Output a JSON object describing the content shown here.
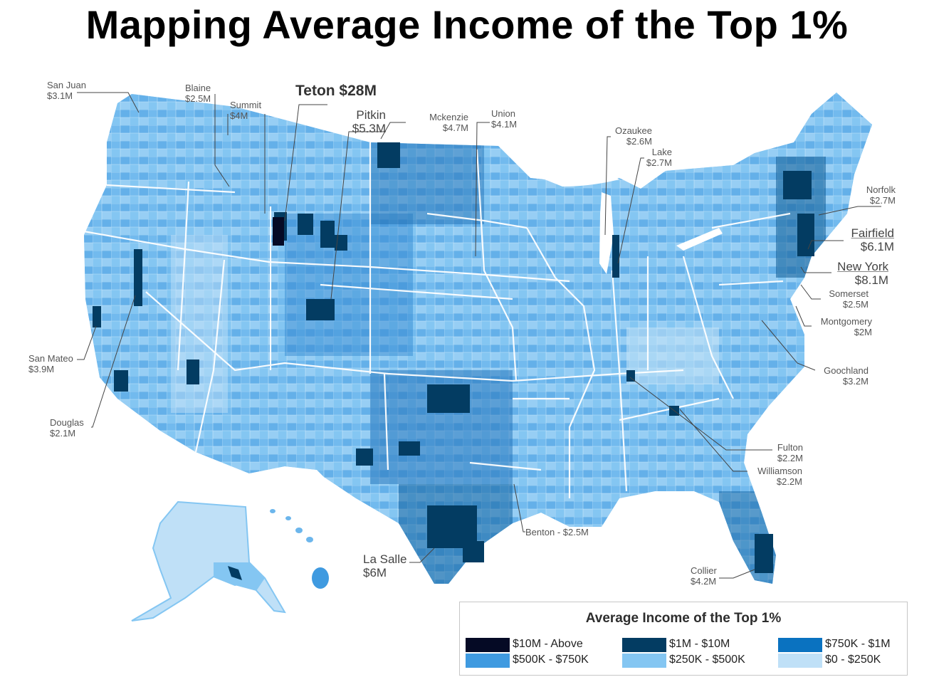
{
  "title": "Mapping Average Income of the Top 1%",
  "colors": {
    "bin_10m_above": "#050a25",
    "bin_1m_10m": "#033c62",
    "bin_750k_1m": "#0a72c0",
    "bin_500k_750k": "#3f9ae0",
    "bin_250k_500k": "#84c6f2",
    "bin_0_250k": "#bfe0f7"
  },
  "callouts": {
    "san_juan": {
      "name": "San Juan",
      "value": "$3.1M"
    },
    "blaine": {
      "name": "Blaine",
      "value": "$2.5M"
    },
    "summit": {
      "name": "Summit",
      "value": "$4M"
    },
    "teton": {
      "text": "Teton $28M"
    },
    "pitkin": {
      "name": "Pitkin",
      "value": "$5.3M"
    },
    "mckenzie": {
      "name": "Mckenzie",
      "value": "$4.7M"
    },
    "union": {
      "name": "Union",
      "value": "$4.1M"
    },
    "ozaukee": {
      "name": "Ozaukee",
      "value": "$2.6M"
    },
    "lake": {
      "name": "Lake",
      "value": "$2.7M"
    },
    "norfolk": {
      "name": "Norfolk",
      "value": "$2.7M"
    },
    "fairfield": {
      "name": "Fairfield",
      "value": "$6.1M"
    },
    "new_york": {
      "name": "New York",
      "value": "$8.1M"
    },
    "somerset": {
      "name": "Somerset",
      "value": "$2.5M"
    },
    "montgomery": {
      "name": "Montgomery",
      "value": "$2M"
    },
    "goochland": {
      "name": "Goochland",
      "value": "$3.2M"
    },
    "san_mateo": {
      "name": "San Mateo",
      "value": "$3.9M"
    },
    "douglas": {
      "name": "Douglas",
      "value": "$2.1M"
    },
    "fulton": {
      "name": "Fulton",
      "value": "$2.2M"
    },
    "williamson": {
      "name": "Williamson",
      "value": "$2.2M"
    },
    "benton": {
      "text": "Benton - $2.5M"
    },
    "la_salle": {
      "name": "La Salle",
      "value": "$6M"
    },
    "collier": {
      "name": "Collier",
      "value": "$4.2M"
    }
  },
  "legend": {
    "title": "Average Income of the Top 1%",
    "items": [
      {
        "label": "$10M - Above",
        "color": "#050a25"
      },
      {
        "label": "$1M - $10M",
        "color": "#033c62"
      },
      {
        "label": "$750K - $1M",
        "color": "#0a72c0"
      },
      {
        "label": "$500K - $750K",
        "color": "#3f9ae0"
      },
      {
        "label": "$250K - $500K",
        "color": "#84c6f2"
      },
      {
        "label": "$0 - $250K",
        "color": "#bfe0f7"
      }
    ]
  }
}
